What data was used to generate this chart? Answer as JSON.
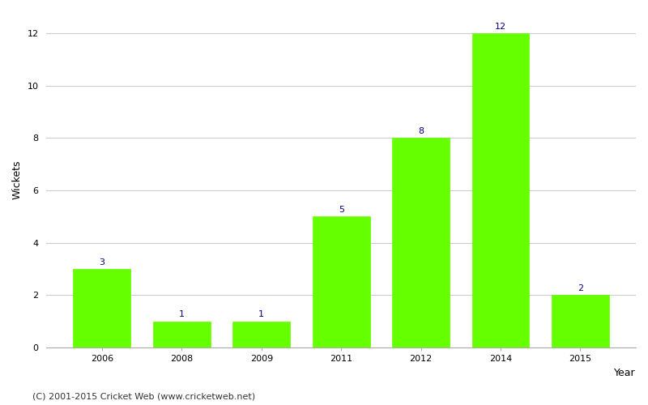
{
  "years": [
    "2006",
    "2008",
    "2009",
    "2011",
    "2012",
    "2014",
    "2015"
  ],
  "wickets": [
    3,
    1,
    1,
    5,
    8,
    12,
    2
  ],
  "bar_color": "#66ff00",
  "xlabel": "Year",
  "ylabel": "Wickets",
  "ylim": [
    0,
    12.8
  ],
  "yticks": [
    0,
    2,
    4,
    6,
    8,
    10,
    12
  ],
  "annotation_color": "#000080",
  "annotation_fontsize": 8,
  "footer": "(C) 2001-2015 Cricket Web (www.cricketweb.net)",
  "footer_fontsize": 8,
  "background_color": "#ffffff",
  "grid_color": "#cccccc",
  "label_fontsize": 9,
  "tick_fontsize": 8,
  "bar_width": 0.72
}
